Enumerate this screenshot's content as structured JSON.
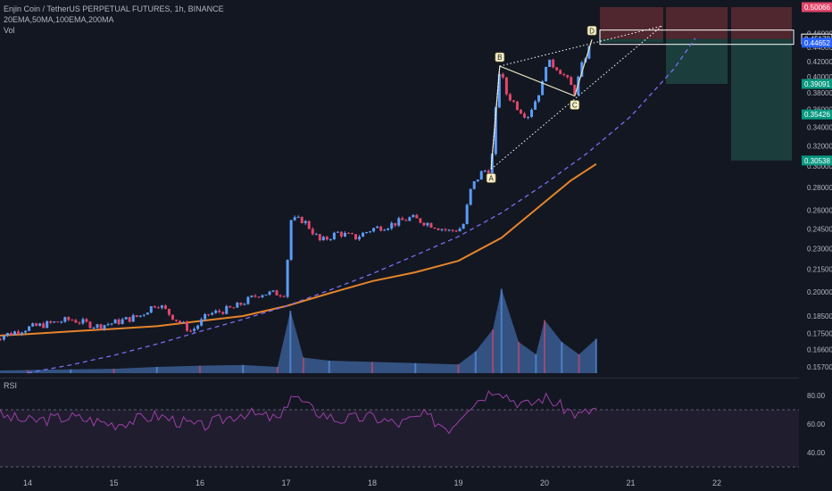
{
  "header": {
    "symbol_line": "Enjin Coin / TetherUS PERPETUAL FUTURES, 1h, BINANCE",
    "indicators_line": "20EMA,50MA,100EMA,200MA",
    "volume_label": "Vol",
    "rsi_label": "RSI"
  },
  "colors": {
    "background": "#131722",
    "up_candle": "#5b9cf6",
    "down_candle": "#e2466b",
    "ma_orange": "#e6842a",
    "ema_dashed": "#7b6cf0",
    "rsi_line": "#9c3fa6",
    "rsi_band": "#2a2138",
    "pattern_line": "#e8e4c0",
    "stop_zone": "#5c2a30",
    "target_zone": "#1e4845",
    "axis_text": "#b2b5be"
  },
  "price_axis": {
    "ticks": [
      "0.46000",
      "0.44000",
      "0.42000",
      "0.40000",
      "0.38000",
      "0.36000",
      "0.34000",
      "0.32000",
      "0.30000",
      "0.28000",
      "0.26000",
      "0.24500",
      "0.23000",
      "0.21500",
      "0.20000",
      "0.18500",
      "0.17500",
      "0.16600",
      "0.15700"
    ],
    "tick_values": [
      0.46,
      0.44,
      0.42,
      0.4,
      0.38,
      0.36,
      0.34,
      0.32,
      0.3,
      0.28,
      0.26,
      0.245,
      0.23,
      0.215,
      0.2,
      0.185,
      0.175,
      0.166,
      0.157
    ],
    "tags": [
      {
        "label": "0.50066",
        "value": 0.50066,
        "color": "#e2466b"
      },
      {
        "label": "0.45178",
        "value": 0.45178,
        "color": "#ffffff"
      },
      {
        "label": "0.44652",
        "value": 0.44652,
        "color": "#2962ff"
      },
      {
        "label": "0.39091",
        "value": 0.39091,
        "color": "#089981"
      },
      {
        "label": "0.35426",
        "value": 0.35426,
        "color": "#089981"
      },
      {
        "label": "0.30538",
        "value": 0.30538,
        "color": "#089981"
      }
    ]
  },
  "rsi_axis": {
    "ticks": [
      "80.00",
      "60.00",
      "40.00"
    ],
    "tick_values": [
      80,
      60,
      40
    ],
    "band": [
      30,
      70
    ]
  },
  "time_axis": {
    "labels": [
      "14",
      "15",
      "16",
      "17",
      "18",
      "19",
      "20",
      "21",
      "22"
    ]
  },
  "pattern": {
    "points": [
      {
        "label": "A",
        "day": 19.38,
        "value": 0.297
      },
      {
        "label": "B",
        "day": 19.48,
        "value": 0.414
      },
      {
        "label": "C",
        "day": 20.35,
        "value": 0.376
      },
      {
        "label": "D",
        "day": 20.55,
        "value": 0.451
      }
    ]
  },
  "chart_data": [
    {
      "type": "candlestick",
      "title": "Enjin Coin / TetherUS PERPETUAL FUTURES, 1h, BINANCE",
      "x_unit": "day of month",
      "ylim": [
        0.152,
        0.505
      ],
      "y_scale": "log",
      "keyframes": [
        {
          "x": 13.6,
          "y": 0.172
        },
        {
          "x": 14.0,
          "y": 0.178
        },
        {
          "x": 14.5,
          "y": 0.183
        },
        {
          "x": 14.8,
          "y": 0.179
        },
        {
          "x": 15.0,
          "y": 0.181
        },
        {
          "x": 15.3,
          "y": 0.185
        },
        {
          "x": 15.5,
          "y": 0.193
        },
        {
          "x": 15.65,
          "y": 0.186
        },
        {
          "x": 15.9,
          "y": 0.176
        },
        {
          "x": 16.1,
          "y": 0.186
        },
        {
          "x": 16.4,
          "y": 0.19
        },
        {
          "x": 16.7,
          "y": 0.199
        },
        {
          "x": 16.85,
          "y": 0.199
        },
        {
          "x": 16.99,
          "y": 0.199
        },
        {
          "x": 17.05,
          "y": 0.252
        },
        {
          "x": 17.2,
          "y": 0.252
        },
        {
          "x": 17.4,
          "y": 0.235
        },
        {
          "x": 17.6,
          "y": 0.242
        },
        {
          "x": 17.8,
          "y": 0.238
        },
        {
          "x": 18.0,
          "y": 0.245
        },
        {
          "x": 18.2,
          "y": 0.248
        },
        {
          "x": 18.45,
          "y": 0.254
        },
        {
          "x": 18.7,
          "y": 0.248
        },
        {
          "x": 18.9,
          "y": 0.243
        },
        {
          "x": 19.05,
          "y": 0.246
        },
        {
          "x": 19.15,
          "y": 0.28
        },
        {
          "x": 19.28,
          "y": 0.295
        },
        {
          "x": 19.38,
          "y": 0.297
        },
        {
          "x": 19.48,
          "y": 0.412
        },
        {
          "x": 19.55,
          "y": 0.38
        },
        {
          "x": 19.7,
          "y": 0.361
        },
        {
          "x": 19.8,
          "y": 0.352
        },
        {
          "x": 19.9,
          "y": 0.372
        },
        {
          "x": 19.98,
          "y": 0.392
        },
        {
          "x": 20.02,
          "y": 0.42
        },
        {
          "x": 20.15,
          "y": 0.412
        },
        {
          "x": 20.25,
          "y": 0.398
        },
        {
          "x": 20.35,
          "y": 0.381
        },
        {
          "x": 20.45,
          "y": 0.421
        },
        {
          "x": 20.55,
          "y": 0.447
        }
      ]
    },
    {
      "type": "line",
      "name": "",
      "x_unit": "day of month",
      "x": [
        13.6,
        14.0,
        14.5,
        15.0,
        15.5,
        16.0,
        16.5,
        17.0,
        17.5,
        18.0,
        18.5,
        19.0,
        19.5,
        20.0,
        20.3,
        20.6
      ],
      "y": [
        0.1735,
        0.1745,
        0.176,
        0.1775,
        0.179,
        0.182,
        0.185,
        0.191,
        0.199,
        0.207,
        0.213,
        0.221,
        0.238,
        0.267,
        0.286,
        0.302
      ]
    },
    {
      "type": "line",
      "name": "",
      "style": "dashed",
      "x_unit": "day of month",
      "x": [
        14.0,
        14.5,
        15.0,
        15.5,
        16.0,
        16.5,
        17.0,
        17.5,
        18.0,
        18.5,
        19.0,
        19.5,
        20.0,
        20.5,
        21.0,
        21.5,
        21.75
      ],
      "y": [
        0.154,
        0.158,
        0.163,
        0.169,
        0.176,
        0.183,
        0.191,
        0.201,
        0.212,
        0.225,
        0.239,
        0.258,
        0.283,
        0.313,
        0.352,
        0.41,
        0.453
      ]
    },
    {
      "type": "area",
      "name": "Vol",
      "x_unit": "day of month",
      "x": [
        13.6,
        14.0,
        14.5,
        15.0,
        15.5,
        16.0,
        16.5,
        16.9,
        17.05,
        17.2,
        17.5,
        18.0,
        18.5,
        19.0,
        19.2,
        19.4,
        19.5,
        19.7,
        19.9,
        20.0,
        20.2,
        20.4,
        20.6
      ],
      "values": [
        0.4,
        0.5,
        0.6,
        0.7,
        1.0,
        1.2,
        1.3,
        1.0,
        10.0,
        2.5,
        2.0,
        1.8,
        1.6,
        1.4,
        3.5,
        7.0,
        13.5,
        5.0,
        3.0,
        8.5,
        5.0,
        3.0,
        5.5
      ]
    },
    {
      "type": "line",
      "name": "RSI",
      "x_unit": "day of month",
      "ylim": [
        25,
        90
      ],
      "x": [
        13.6,
        14.0,
        14.5,
        15.0,
        15.5,
        16.0,
        16.5,
        16.95,
        17.05,
        17.3,
        17.6,
        18.0,
        18.3,
        18.6,
        18.9,
        19.1,
        19.3,
        19.45,
        19.6,
        19.8,
        20.0,
        20.2,
        20.4,
        20.6
      ],
      "y": [
        67,
        62,
        65,
        60,
        66,
        58,
        68,
        63,
        82,
        70,
        63,
        65,
        60,
        66,
        57,
        72,
        80,
        86,
        78,
        73,
        79,
        72,
        66,
        71
      ]
    }
  ]
}
